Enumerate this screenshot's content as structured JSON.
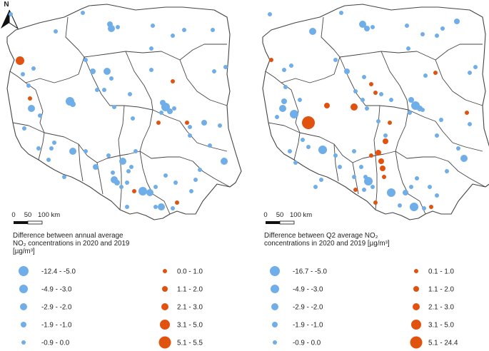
{
  "colors": {
    "decrease": "#6faee8",
    "increase": "#e2520f",
    "border": "#444444",
    "background": "#ffffff"
  },
  "north_arrow": {
    "label": "N",
    "icon": "north-arrow-icon"
  },
  "maps": [
    {
      "id": "annual",
      "scale": {
        "ticks": [
          "0",
          "50",
          "100 km"
        ]
      },
      "legend": {
        "title_lines": [
          "Difference between annual average",
          "NO₂ concentrations in 2020 and 2019",
          "[µg/m³]"
        ],
        "decrease_classes": [
          "-12.4 - -5.0",
          "-4.9 - -3.0",
          "-2.9 - -2.0",
          "-1.9 - -1.0",
          "-0.9 - 0.0"
        ],
        "increase_classes": [
          "0.0 - 1.0",
          "1.1 - 2.0",
          "2.1 - 3.0",
          "3.1 - 5.0",
          "5.1 - 5.5"
        ]
      }
    },
    {
      "id": "q2",
      "scale": {
        "ticks": [
          "0",
          "50",
          "100 km"
        ]
      },
      "legend": {
        "title_lines": [
          "Difference between Q2 average NO₂",
          "concentrations in 2020 and 2019 [µg/m³]"
        ],
        "decrease_classes": [
          "-16.7 - -5.0",
          "-4.9 - -3.0",
          "-2.9 - -2.0",
          "-1.9 - -1.0",
          "-0.9 - 0.0"
        ],
        "increase_classes": [
          "0.1 - 1.0",
          "1.1 - 2.0",
          "2.1 - 3.0",
          "3.1 - 5.0",
          "5.1 - 24.4"
        ]
      }
    }
  ]
}
